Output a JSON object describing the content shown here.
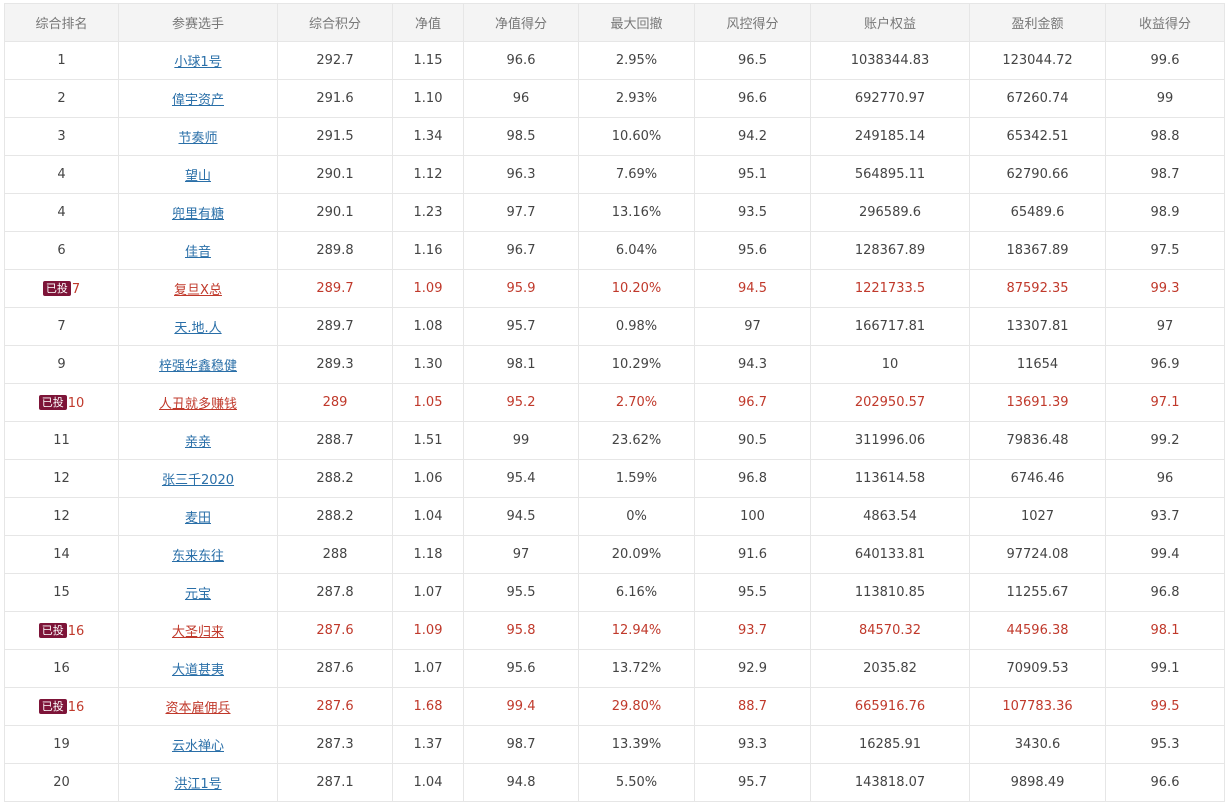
{
  "colors": {
    "invested_text": "#c0392b",
    "badge_bg": "#7d1438",
    "link": "#2a6fa8"
  },
  "badge_label": "已投",
  "headers": [
    "综合排名",
    "参赛选手",
    "综合积分",
    "净值",
    "净值得分",
    "最大回撤",
    "风控得分",
    "账户权益",
    "盈利金额",
    "收益得分"
  ],
  "rows": [
    {
      "rank": "1",
      "player": "小球1号",
      "score": "292.7",
      "nav": "1.15",
      "nav_score": "96.6",
      "max_drawdown": "2.95%",
      "risk_score": "96.5",
      "equity": "1038344.83",
      "profit": "123044.72",
      "return_score": "99.6",
      "invested": false
    },
    {
      "rank": "2",
      "player": "偉宇资产",
      "score": "291.6",
      "nav": "1.10",
      "nav_score": "96",
      "max_drawdown": "2.93%",
      "risk_score": "96.6",
      "equity": "692770.97",
      "profit": "67260.74",
      "return_score": "99",
      "invested": false
    },
    {
      "rank": "3",
      "player": "节奏师",
      "score": "291.5",
      "nav": "1.34",
      "nav_score": "98.5",
      "max_drawdown": "10.60%",
      "risk_score": "94.2",
      "equity": "249185.14",
      "profit": "65342.51",
      "return_score": "98.8",
      "invested": false
    },
    {
      "rank": "4",
      "player": "望山",
      "score": "290.1",
      "nav": "1.12",
      "nav_score": "96.3",
      "max_drawdown": "7.69%",
      "risk_score": "95.1",
      "equity": "564895.11",
      "profit": "62790.66",
      "return_score": "98.7",
      "invested": false
    },
    {
      "rank": "4",
      "player": "兜里有糖",
      "score": "290.1",
      "nav": "1.23",
      "nav_score": "97.7",
      "max_drawdown": "13.16%",
      "risk_score": "93.5",
      "equity": "296589.6",
      "profit": "65489.6",
      "return_score": "98.9",
      "invested": false
    },
    {
      "rank": "6",
      "player": "佳音",
      "score": "289.8",
      "nav": "1.16",
      "nav_score": "96.7",
      "max_drawdown": "6.04%",
      "risk_score": "95.6",
      "equity": "128367.89",
      "profit": "18367.89",
      "return_score": "97.5",
      "invested": false
    },
    {
      "rank": "7",
      "player": "复旦X总",
      "score": "289.7",
      "nav": "1.09",
      "nav_score": "95.9",
      "max_drawdown": "10.20%",
      "risk_score": "94.5",
      "equity": "1221733.5",
      "profit": "87592.35",
      "return_score": "99.3",
      "invested": true
    },
    {
      "rank": "7",
      "player": "天.地.人",
      "score": "289.7",
      "nav": "1.08",
      "nav_score": "95.7",
      "max_drawdown": "0.98%",
      "risk_score": "97",
      "equity": "166717.81",
      "profit": "13307.81",
      "return_score": "97",
      "invested": false
    },
    {
      "rank": "9",
      "player": "梓强华鑫稳健",
      "score": "289.3",
      "nav": "1.30",
      "nav_score": "98.1",
      "max_drawdown": "10.29%",
      "risk_score": "94.3",
      "equity": "10",
      "profit": "11654",
      "return_score": "96.9",
      "invested": false
    },
    {
      "rank": "10",
      "player": "人丑就多赚钱",
      "score": "289",
      "nav": "1.05",
      "nav_score": "95.2",
      "max_drawdown": "2.70%",
      "risk_score": "96.7",
      "equity": "202950.57",
      "profit": "13691.39",
      "return_score": "97.1",
      "invested": true
    },
    {
      "rank": "11",
      "player": "亲亲",
      "score": "288.7",
      "nav": "1.51",
      "nav_score": "99",
      "max_drawdown": "23.62%",
      "risk_score": "90.5",
      "equity": "311996.06",
      "profit": "79836.48",
      "return_score": "99.2",
      "invested": false
    },
    {
      "rank": "12",
      "player": "张三千2020",
      "score": "288.2",
      "nav": "1.06",
      "nav_score": "95.4",
      "max_drawdown": "1.59%",
      "risk_score": "96.8",
      "equity": "113614.58",
      "profit": "6746.46",
      "return_score": "96",
      "invested": false
    },
    {
      "rank": "12",
      "player": "麦田",
      "score": "288.2",
      "nav": "1.04",
      "nav_score": "94.5",
      "max_drawdown": "0%",
      "risk_score": "100",
      "equity": "4863.54",
      "profit": "1027",
      "return_score": "93.7",
      "invested": false
    },
    {
      "rank": "14",
      "player": "东来东往",
      "score": "288",
      "nav": "1.18",
      "nav_score": "97",
      "max_drawdown": "20.09%",
      "risk_score": "91.6",
      "equity": "640133.81",
      "profit": "97724.08",
      "return_score": "99.4",
      "invested": false
    },
    {
      "rank": "15",
      "player": "元宝",
      "score": "287.8",
      "nav": "1.07",
      "nav_score": "95.5",
      "max_drawdown": "6.16%",
      "risk_score": "95.5",
      "equity": "113810.85",
      "profit": "11255.67",
      "return_score": "96.8",
      "invested": false
    },
    {
      "rank": "16",
      "player": "大圣归来",
      "score": "287.6",
      "nav": "1.09",
      "nav_score": "95.8",
      "max_drawdown": "12.94%",
      "risk_score": "93.7",
      "equity": "84570.32",
      "profit": "44596.38",
      "return_score": "98.1",
      "invested": true
    },
    {
      "rank": "16",
      "player": "大道甚夷",
      "score": "287.6",
      "nav": "1.07",
      "nav_score": "95.6",
      "max_drawdown": "13.72%",
      "risk_score": "92.9",
      "equity": "2035.82",
      "profit": "70909.53",
      "return_score": "99.1",
      "invested": false
    },
    {
      "rank": "16",
      "player": "资本雇佣兵",
      "score": "287.6",
      "nav": "1.68",
      "nav_score": "99.4",
      "max_drawdown": "29.80%",
      "risk_score": "88.7",
      "equity": "665916.76",
      "profit": "107783.36",
      "return_score": "99.5",
      "invested": true
    },
    {
      "rank": "19",
      "player": "云水禅心",
      "score": "287.3",
      "nav": "1.37",
      "nav_score": "98.7",
      "max_drawdown": "13.39%",
      "risk_score": "93.3",
      "equity": "16285.91",
      "profit": "3430.6",
      "return_score": "95.3",
      "invested": false
    },
    {
      "rank": "20",
      "player": "洪江1号",
      "score": "287.1",
      "nav": "1.04",
      "nav_score": "94.8",
      "max_drawdown": "5.50%",
      "risk_score": "95.7",
      "equity": "143818.07",
      "profit": "9898.49",
      "return_score": "96.6",
      "invested": false
    }
  ]
}
